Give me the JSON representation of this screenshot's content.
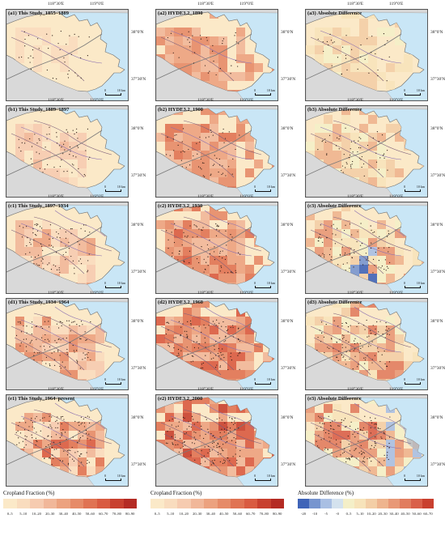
{
  "coordinates": {
    "lon_left": "118°30'E",
    "lon_right": "119°0'E",
    "lat_top": "38°0'N",
    "lat_bottom": "37°30'N"
  },
  "scale": {
    "start": "0",
    "end": "10 km"
  },
  "panels": [
    {
      "id": "a1",
      "label": "(a1) This Study_1855–1889",
      "type": "study"
    },
    {
      "id": "a2",
      "label": "(a2) HYDE3.2_1890",
      "type": "hyde"
    },
    {
      "id": "a3",
      "label": "(a3) Absolute Difference",
      "type": "diff"
    },
    {
      "id": "b1",
      "label": "(b1) This Study_1889–1897",
      "type": "study"
    },
    {
      "id": "b2",
      "label": "(b2) HYDE3.2_1900",
      "type": "hyde"
    },
    {
      "id": "b3",
      "label": "(b3) Absolute Difference",
      "type": "diff"
    },
    {
      "id": "c1",
      "label": "(c1) This Study_1897–1934",
      "type": "study"
    },
    {
      "id": "c2",
      "label": "(c2) HYDE3.2_1930",
      "type": "hyde"
    },
    {
      "id": "c3",
      "label": "(c3) Absolute Difference",
      "type": "diff"
    },
    {
      "id": "d1",
      "label": "(d1) This Study_1934–1964",
      "type": "study"
    },
    {
      "id": "d2",
      "label": "(d2) HYDE3.2_1960",
      "type": "hyde"
    },
    {
      "id": "d3",
      "label": "(d3) Absolute Difference",
      "type": "diff"
    },
    {
      "id": "e1",
      "label": "(e1) This Study_1964–present",
      "type": "study"
    },
    {
      "id": "e2",
      "label": "(e2) HYDE3.2_2000",
      "type": "hyde"
    },
    {
      "id": "e3",
      "label": "(e3) Absolute Difference",
      "type": "diff"
    }
  ],
  "legends": [
    {
      "title": "Cropland Fraction (%)",
      "labels": [
        "0–5",
        "5–10",
        "10–20",
        "20–30",
        "30–40",
        "40–50",
        "50–60",
        "60–70",
        "70–80",
        "80–90"
      ],
      "colors": [
        "#fbe9c8",
        "#f9dcbe",
        "#f6cbb0",
        "#f1b799",
        "#eca27f",
        "#e68b68",
        "#e07353",
        "#d95b41",
        "#c8402f",
        "#b42b24"
      ]
    },
    {
      "title": "Cropland Fraction (%)",
      "labels": [
        "0–5",
        "5–10",
        "10–20",
        "20–30",
        "30–40",
        "40–50",
        "50–60",
        "60–70",
        "70–80",
        "80–90"
      ],
      "colors": [
        "#fbe9c8",
        "#f9dcbe",
        "#f6cbb0",
        "#f1b799",
        "#eca27f",
        "#e68b68",
        "#e07353",
        "#d95b41",
        "#c8402f",
        "#b42b24"
      ]
    },
    {
      "title": "Absolute Difference (%)",
      "labels": [
        "-20",
        "-10",
        "-5",
        "-0",
        "0–5",
        "5–10",
        "10–20",
        "20–30",
        "30–40",
        "40–50",
        "50–60",
        "60–70"
      ],
      "colors": [
        "#3f64b8",
        "#7795cf",
        "#a9bfe3",
        "#d4e2ee",
        "#f4efc8",
        "#f7e3ba",
        "#f3cea6",
        "#eeb48e",
        "#e89877",
        "#e17d5f",
        "#d9604a",
        "#c9402f"
      ]
    }
  ]
}
